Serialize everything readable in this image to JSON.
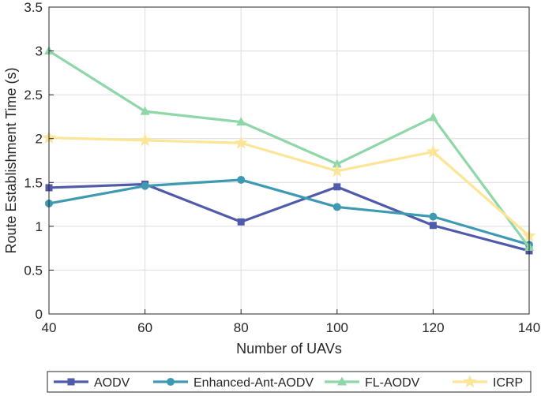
{
  "chart_data": {
    "type": "line",
    "x": [
      40,
      60,
      80,
      100,
      120,
      140
    ],
    "xlabel": "Number of UAVs",
    "ylabel": "Route Establishment Time (s)",
    "xlim": [
      40,
      140
    ],
    "ylim": [
      0,
      3.5
    ],
    "xticks": [
      "40",
      "60",
      "80",
      "100",
      "120",
      "140"
    ],
    "yticks": [
      "0",
      "0.5",
      "1",
      "1.5",
      "2",
      "2.5",
      "3",
      "3.5"
    ],
    "grid": true,
    "legend_position": "bottom",
    "series": [
      {
        "name": "AODV",
        "color": "#4F5BAA",
        "marker": "square",
        "values": [
          1.44,
          1.48,
          1.05,
          1.45,
          1.01,
          0.72
        ]
      },
      {
        "name": "Enhanced-Ant-AODV",
        "color": "#3E9AB3",
        "marker": "circle",
        "values": [
          1.26,
          1.46,
          1.53,
          1.22,
          1.11,
          0.79
        ]
      },
      {
        "name": "FL-AODV",
        "color": "#8FD6A8",
        "marker": "triangle",
        "values": [
          3.0,
          2.31,
          2.19,
          1.71,
          2.24,
          0.76
        ]
      },
      {
        "name": "ICRP",
        "color": "#FCE596",
        "marker": "star",
        "values": [
          2.01,
          1.98,
          1.95,
          1.63,
          1.85,
          0.89
        ]
      }
    ]
  }
}
